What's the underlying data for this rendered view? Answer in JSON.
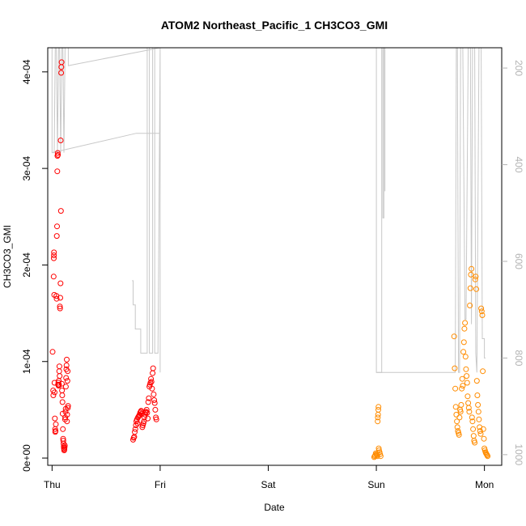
{
  "chart_data": {
    "type": "scatter",
    "title": "ATOM2 Northeast_Pacific_1 CH3CO3_GMI",
    "xlabel": "Date",
    "ylabel": "CH3CO3_GMI",
    "x_ticks": [
      "Thu",
      "Fri",
      "Sat",
      "Sun",
      "Mon"
    ],
    "xlim": [
      -0.04,
      4.16
    ],
    "ylim": [
      -7.5e-06,
      0.000425
    ],
    "y_ticks": [
      {
        "value": 0,
        "label": "0e+00"
      },
      {
        "value": 0.0001,
        "label": "1e-04"
      },
      {
        "value": 0.0002,
        "label": "2e-04"
      },
      {
        "value": 0.0003,
        "label": "3e-04"
      },
      {
        "value": 0.0004,
        "label": "4e-04"
      }
    ],
    "y2lim": [
      1022,
      158
    ],
    "y2_ticks": [
      {
        "value": 200,
        "label": "200"
      },
      {
        "value": 400,
        "label": "400"
      },
      {
        "value": 600,
        "label": "600"
      },
      {
        "value": 800,
        "label": "800"
      },
      {
        "value": 1000,
        "label": "1000"
      }
    ],
    "grid": false,
    "colors": {
      "flight1": "#ff0000",
      "flight2": "#ff0000",
      "flight3": "#ff8c00",
      "flight4": "#ff8c00",
      "pressure": "#c8c8c8"
    },
    "series": [
      {
        "key": "flight1",
        "points": [
          [
            0.005,
            0.00011
          ],
          [
            0.01,
            7e-05
          ],
          [
            0.012,
            6.5e-05
          ],
          [
            0.015,
            0.000188
          ],
          [
            0.016,
            0.000207
          ],
          [
            0.017,
            0.00021
          ],
          [
            0.018,
            0.000213
          ],
          [
            0.02,
            0.000169
          ],
          [
            0.022,
            7.8e-05
          ],
          [
            0.024,
            6.8e-05
          ],
          [
            0.026,
            4.1e-05
          ],
          [
            0.028,
            3e-05
          ],
          [
            0.03,
            2.7e-05
          ],
          [
            0.032,
            2.8e-05
          ],
          [
            0.035,
            3.5e-05
          ],
          [
            0.04,
            0.000168
          ],
          [
            0.042,
            0.000165
          ],
          [
            0.044,
            0.00023
          ],
          [
            0.046,
            0.00024
          ],
          [
            0.048,
            0.000297
          ],
          [
            0.05,
            0.000313
          ],
          [
            0.052,
            0.000316
          ],
          [
            0.054,
            0.000314
          ],
          [
            0.056,
            7.6e-05
          ],
          [
            0.058,
            7.8e-05
          ],
          [
            0.06,
            7.5e-05
          ],
          [
            0.062,
            8e-05
          ],
          [
            0.064,
            7.6e-05
          ],
          [
            0.066,
            9e-05
          ],
          [
            0.068,
            9.5e-05
          ],
          [
            0.07,
            8.5e-05
          ],
          [
            0.072,
            0.000157
          ],
          [
            0.074,
            0.000155
          ],
          [
            0.076,
            0.000166
          ],
          [
            0.078,
            0.000181
          ],
          [
            0.08,
            0.000329
          ],
          [
            0.082,
            0.000256
          ],
          [
            0.084,
            0.000399
          ],
          [
            0.086,
            0.000405
          ],
          [
            0.088,
            0.00041
          ],
          [
            0.09,
            7.7e-05
          ],
          [
            0.092,
            7e-05
          ],
          [
            0.094,
            6.5e-05
          ],
          [
            0.096,
            5.8e-05
          ],
          [
            0.098,
            4.6e-05
          ],
          [
            0.1,
            3e-05
          ],
          [
            0.102,
            2e-05
          ],
          [
            0.104,
            1.8e-05
          ],
          [
            0.106,
            1.5e-05
          ],
          [
            0.108,
            1.2e-05
          ],
          [
            0.11,
            1e-05
          ],
          [
            0.112,
            8e-06
          ],
          [
            0.114,
            9e-06
          ],
          [
            0.116,
            1.1e-05
          ],
          [
            0.118,
            1.3e-05
          ],
          [
            0.12,
            4e-05
          ],
          [
            0.122,
            4.2e-05
          ],
          [
            0.124,
            4.8e-05
          ],
          [
            0.126,
            5.1e-05
          ],
          [
            0.128,
            7.4e-05
          ],
          [
            0.13,
            8.3e-05
          ],
          [
            0.132,
            9.2e-05
          ],
          [
            0.134,
            9.6e-05
          ],
          [
            0.136,
            0.000102
          ],
          [
            0.138,
            3.8e-05
          ],
          [
            0.14,
            4.5e-05
          ],
          [
            0.142,
            8e-05
          ],
          [
            0.144,
            9e-05
          ],
          [
            0.146,
            5.2e-05
          ],
          [
            0.148,
            5.4e-05
          ]
        ]
      },
      {
        "key": "flight2",
        "points": [
          [
            0.75,
            1.9e-05
          ],
          [
            0.755,
            2.1e-05
          ],
          [
            0.76,
            2.2e-05
          ],
          [
            0.765,
            2.7e-05
          ],
          [
            0.77,
            3e-05
          ],
          [
            0.775,
            3.4e-05
          ],
          [
            0.78,
            3.8e-05
          ],
          [
            0.785,
            4e-05
          ],
          [
            0.79,
            3.6e-05
          ],
          [
            0.795,
            4.2e-05
          ],
          [
            0.8,
            4.3e-05
          ],
          [
            0.805,
            4.4e-05
          ],
          [
            0.81,
            4.5e-05
          ],
          [
            0.815,
            4.7e-05
          ],
          [
            0.82,
            4.8e-05
          ],
          [
            0.825,
            4.9e-05
          ],
          [
            0.83,
            4.6e-05
          ],
          [
            0.835,
            3.2e-05
          ],
          [
            0.84,
            3.4e-05
          ],
          [
            0.845,
            3.6e-05
          ],
          [
            0.85,
            3.8e-05
          ],
          [
            0.855,
            4.2e-05
          ],
          [
            0.86,
            4.5e-05
          ],
          [
            0.865,
            4.7e-05
          ],
          [
            0.87,
            4.8e-05
          ],
          [
            0.875,
            5e-05
          ],
          [
            0.88,
            4.7e-05
          ],
          [
            0.885,
            4.1e-05
          ],
          [
            0.89,
            5.8e-05
          ],
          [
            0.895,
            6.2e-05
          ],
          [
            0.9,
            7.4e-05
          ],
          [
            0.905,
            7.6e-05
          ],
          [
            0.91,
            7.8e-05
          ],
          [
            0.915,
            8.2e-05
          ],
          [
            0.92,
            7.9e-05
          ],
          [
            0.925,
            7.2e-05
          ],
          [
            0.93,
            8.8e-05
          ],
          [
            0.935,
            9.3e-05
          ],
          [
            0.94,
            6.6e-05
          ],
          [
            0.945,
            6e-05
          ],
          [
            0.95,
            5.7e-05
          ],
          [
            0.955,
            5e-05
          ],
          [
            0.96,
            4.2e-05
          ],
          [
            0.965,
            4e-05
          ]
        ]
      },
      {
        "key": "flight3",
        "points": [
          [
            2.98,
            1e-06
          ],
          [
            2.985,
            2e-06
          ],
          [
            2.99,
            3e-06
          ],
          [
            2.995,
            5e-06
          ],
          [
            3.0,
            4e-06
          ],
          [
            3.005,
            3e-06
          ],
          [
            3.01,
            2e-06
          ],
          [
            3.012,
            3.8e-05
          ],
          [
            3.014,
            4.2e-05
          ],
          [
            3.016,
            4.5e-05
          ],
          [
            3.018,
            5e-05
          ],
          [
            3.02,
            5.3e-05
          ],
          [
            3.022,
            1e-05
          ],
          [
            3.025,
            8e-06
          ],
          [
            3.03,
            6e-06
          ],
          [
            3.035,
            4e-06
          ],
          [
            3.04,
            2e-06
          ]
        ]
      },
      {
        "key": "flight4",
        "points": [
          [
            3.72,
            0.000126
          ],
          [
            3.725,
            9.3e-05
          ],
          [
            3.73,
            7.2e-05
          ],
          [
            3.735,
            5.3e-05
          ],
          [
            3.74,
            4.5e-05
          ],
          [
            3.745,
            3.8e-05
          ],
          [
            3.75,
            3.2e-05
          ],
          [
            3.755,
            2.8e-05
          ],
          [
            3.76,
            2.6e-05
          ],
          [
            3.765,
            2.4e-05
          ],
          [
            3.77,
            4.2e-05
          ],
          [
            3.775,
            5e-05
          ],
          [
            3.78,
            4.8e-05
          ],
          [
            3.785,
            5.5e-05
          ],
          [
            3.79,
            7.2e-05
          ],
          [
            3.795,
            8.2e-05
          ],
          [
            3.8,
            7.5e-05
          ],
          [
            3.805,
            0.00011
          ],
          [
            3.81,
            0.00012
          ],
          [
            3.815,
            0.000134
          ],
          [
            3.82,
            0.00014
          ],
          [
            3.825,
            0.000105
          ],
          [
            3.83,
            9.2e-05
          ],
          [
            3.835,
            8.5e-05
          ],
          [
            3.84,
            7.8e-05
          ],
          [
            3.845,
            6.4e-05
          ],
          [
            3.85,
            5.7e-05
          ],
          [
            3.855,
            5.2e-05
          ],
          [
            3.86,
            4.8e-05
          ],
          [
            3.865,
            0.000158
          ],
          [
            3.87,
            0.000176
          ],
          [
            3.875,
            0.00019
          ],
          [
            3.88,
            0.000196
          ],
          [
            3.885,
            4.2e-05
          ],
          [
            3.89,
            3.8e-05
          ],
          [
            3.895,
            3e-05
          ],
          [
            3.9,
            2.3e-05
          ],
          [
            3.905,
            1.8e-05
          ],
          [
            3.91,
            1.6e-05
          ],
          [
            3.915,
            0.000185
          ],
          [
            3.92,
            0.000188
          ],
          [
            3.925,
            0.000175
          ],
          [
            3.93,
            8e-05
          ],
          [
            3.935,
            6.5e-05
          ],
          [
            3.94,
            5.5e-05
          ],
          [
            3.945,
            4.8e-05
          ],
          [
            3.95,
            4e-05
          ],
          [
            3.955,
            3.2e-05
          ],
          [
            3.96,
            2.8e-05
          ],
          [
            3.965,
            2.5e-05
          ],
          [
            3.97,
            0.000155
          ],
          [
            3.975,
            0.000152
          ],
          [
            3.98,
            0.000148
          ],
          [
            3.985,
            9e-05
          ],
          [
            3.99,
            3e-05
          ],
          [
            3.995,
            2e-05
          ],
          [
            4.0,
            1e-05
          ],
          [
            4.005,
            8e-06
          ],
          [
            4.01,
            6e-06
          ],
          [
            4.015,
            5e-06
          ],
          [
            4.02,
            4e-06
          ],
          [
            4.025,
            3e-06
          ],
          [
            4.03,
            2e-06
          ]
        ]
      }
    ],
    "pressure_series": {
      "key": "pressure",
      "segments": [
        [
          [
            0.0,
            158
          ],
          [
            0.0,
            375
          ],
          [
            0.02,
            375
          ],
          [
            0.03,
            158
          ],
          [
            0.04,
            158
          ],
          [
            0.05,
            375
          ],
          [
            0.06,
            158
          ],
          [
            0.07,
            158
          ],
          [
            0.08,
            375
          ],
          [
            0.09,
            158
          ],
          [
            0.1,
            158
          ],
          [
            0.11,
            375
          ],
          [
            0.12,
            158
          ],
          [
            0.15,
            158
          ],
          [
            0.15,
            195
          ],
          [
            1.0,
            158
          ],
          [
            1.6,
            158
          ]
        ],
        [
          [
            0.0,
            375
          ],
          [
            0.78,
            335
          ],
          [
            1.0,
            335
          ]
        ],
        [
          [
            0.74,
            640
          ],
          [
            0.75,
            640
          ],
          [
            0.75,
            690
          ],
          [
            0.77,
            690
          ],
          [
            0.77,
            740
          ],
          [
            0.82,
            740
          ],
          [
            0.82,
            790
          ],
          [
            0.88,
            790
          ],
          [
            0.88,
            158
          ],
          [
            0.9,
            158
          ],
          [
            0.9,
            790
          ],
          [
            0.93,
            790
          ],
          [
            0.93,
            158
          ],
          [
            0.95,
            158
          ],
          [
            0.95,
            790
          ],
          [
            0.98,
            790
          ],
          [
            1.0,
            158
          ],
          [
            1.0,
            830
          ]
        ],
        [
          [
            3.0,
            158
          ],
          [
            3.0,
            830
          ],
          [
            3.05,
            830
          ],
          [
            3.05,
            158
          ],
          [
            3.06,
            158
          ],
          [
            3.06,
            510
          ],
          [
            3.07,
            510
          ],
          [
            3.07,
            158
          ],
          [
            3.08,
            158
          ],
          [
            3.08,
            455
          ]
        ],
        [
          [
            3.0,
            830
          ],
          [
            3.73,
            830
          ],
          [
            3.74,
            158
          ],
          [
            3.75,
            158
          ],
          [
            3.76,
            830
          ],
          [
            3.77,
            830
          ],
          [
            3.78,
            158
          ],
          [
            3.8,
            158
          ],
          [
            3.82,
            720
          ],
          [
            3.83,
            720
          ],
          [
            3.85,
            158
          ],
          [
            3.87,
            158
          ],
          [
            3.88,
            730
          ],
          [
            3.89,
            158
          ],
          [
            3.91,
            158
          ],
          [
            3.92,
            790
          ],
          [
            3.93,
            830
          ],
          [
            3.95,
            158
          ],
          [
            3.97,
            158
          ],
          [
            3.98,
            760
          ],
          [
            4.0,
            760
          ],
          [
            4.0,
            800
          ],
          [
            4.01,
            800
          ]
        ]
      ]
    }
  }
}
